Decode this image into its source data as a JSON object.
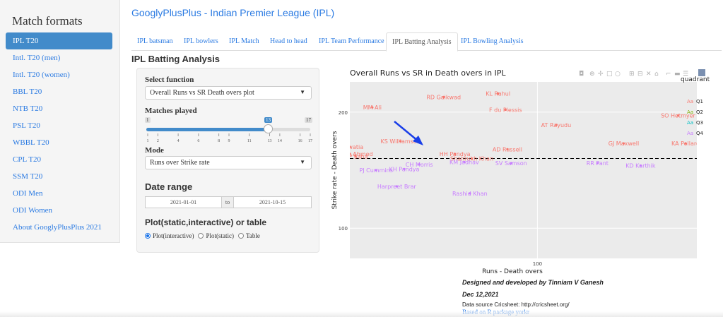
{
  "sidebar": {
    "title": "Match formats",
    "items": [
      {
        "label": "IPL T20",
        "active": true
      },
      {
        "label": "Intl. T20 (men)"
      },
      {
        "label": "Intl. T20 (women)"
      },
      {
        "label": "BBL T20"
      },
      {
        "label": "NTB T20"
      },
      {
        "label": "PSL T20"
      },
      {
        "label": "WBBL T20"
      },
      {
        "label": "CPL T20"
      },
      {
        "label": "SSM T20"
      },
      {
        "label": "ODI Men"
      },
      {
        "label": "ODI Women"
      },
      {
        "label": "About GooglyPlusPlus 2021"
      }
    ]
  },
  "header": {
    "title": "GooglyPlusPlus - Indian Premier League (IPL)"
  },
  "tabs": [
    {
      "label": "IPL batsman"
    },
    {
      "label": "IPL bowlers"
    },
    {
      "label": "IPL Match"
    },
    {
      "label": "Head to head"
    },
    {
      "label": "IPL Team Performance"
    },
    {
      "label": "IPL Batting Analysis",
      "active": true
    },
    {
      "label": "IPL Bowling Analysis"
    }
  ],
  "section_title": "IPL Batting Analysis",
  "controls": {
    "function_label": "Select function",
    "function_value": "Overall Runs vs SR Death overs plot",
    "matches_label": "Matches played",
    "slider": {
      "min": "1",
      "max": "17",
      "value": "13",
      "ticks": [
        "1",
        "2",
        "4",
        "6",
        "8",
        "9",
        "11",
        "13",
        "14",
        "16",
        "17"
      ]
    },
    "mode_label": "Mode",
    "mode_value": "Runs over Strike rate",
    "date_label": "Date range",
    "date_from": "2021-01-01",
    "date_sep": "to",
    "date_to": "2021-10-15",
    "plot_label": "Plot(static,interactive) or table",
    "radio_options": [
      {
        "label": "Plot(interactive)",
        "checked": true
      },
      {
        "label": "Plot(static)"
      },
      {
        "label": "Table"
      }
    ]
  },
  "chart_data": {
    "type": "scatter",
    "title": "Overall Runs vs SR in Death overs in IPL",
    "xlabel": "Runs - Death overs",
    "ylabel": "Strike rate - Death overs",
    "x_ticks": [
      100
    ],
    "y_ticks": [
      100,
      200
    ],
    "xlim": [
      0,
      185
    ],
    "ylim": [
      74,
      226
    ],
    "hline": 160,
    "legend_title": "quadrant",
    "legend": [
      {
        "name": "Q1",
        "color": "#F8766D"
      },
      {
        "name": "Q2",
        "color": "#7CAE00"
      },
      {
        "name": "Q3",
        "color": "#00BFC4"
      },
      {
        "name": "Q4",
        "color": "#C77CFF"
      }
    ],
    "points": [
      {
        "label": "MM Ali",
        "x": 12,
        "y": 204,
        "q": "Q1"
      },
      {
        "label": "RD Gaikwad",
        "x": 50,
        "y": 213,
        "q": "Q1"
      },
      {
        "label": "KL Rahul",
        "x": 79,
        "y": 216,
        "q": "Q1"
      },
      {
        "label": "F du Plessis",
        "x": 83,
        "y": 202,
        "q": "Q1"
      },
      {
        "label": "AT Rayudu",
        "x": 110,
        "y": 189,
        "q": "Q1"
      },
      {
        "label": "SO Hetmyer",
        "x": 175,
        "y": 197,
        "q": "Q1"
      },
      {
        "label": "KS Williamson",
        "x": 27,
        "y": 175,
        "q": "Q1"
      },
      {
        "label": "GJ Maxwell",
        "x": 146,
        "y": 173,
        "q": "Q1"
      },
      {
        "label": "KA Pollard",
        "x": 179,
        "y": 173,
        "q": "Q1"
      },
      {
        "label": "R Tewatia",
        "x": 0,
        "y": 170,
        "q": "Q1"
      },
      {
        "label": "AD Russell",
        "x": 84,
        "y": 168,
        "q": "Q1"
      },
      {
        "label": "Shahbaz Ahmed",
        "x": 0,
        "y": 164,
        "q": "Q1"
      },
      {
        "label": "WP Saha",
        "x": 3,
        "y": 162,
        "q": "Q1"
      },
      {
        "label": "HH Pandya",
        "x": 56,
        "y": 164,
        "q": "Q1"
      },
      {
        "label": "Shahrukh Khan",
        "x": 65,
        "y": 160,
        "q": "Q1"
      },
      {
        "label": "KM Jadhav",
        "x": 61,
        "y": 157,
        "q": "Q4"
      },
      {
        "label": "SV Samson",
        "x": 86,
        "y": 156,
        "q": "Q4"
      },
      {
        "label": "RR Pant",
        "x": 132,
        "y": 156,
        "q": "Q4"
      },
      {
        "label": "CH Morris",
        "x": 37,
        "y": 155,
        "q": "Q4"
      },
      {
        "label": "KD Karthik",
        "x": 155,
        "y": 154,
        "q": "Q4"
      },
      {
        "label": "KH Pandya",
        "x": 29,
        "y": 151,
        "q": "Q4"
      },
      {
        "label": "PJ Cummins",
        "x": 14,
        "y": 150,
        "q": "Q4"
      },
      {
        "label": "Harpreet Brar",
        "x": 25,
        "y": 136,
        "q": "Q4"
      },
      {
        "label": "Rashid Khan",
        "x": 64,
        "y": 130,
        "q": "Q4"
      }
    ]
  },
  "footer": {
    "line1": "Designed and developed by Tinniam V Ganesh",
    "line2": "Dec 12,2021",
    "line3": "Data source Cricsheet: http://cricsheet.org/",
    "line4": "Based on R package yorkr"
  }
}
